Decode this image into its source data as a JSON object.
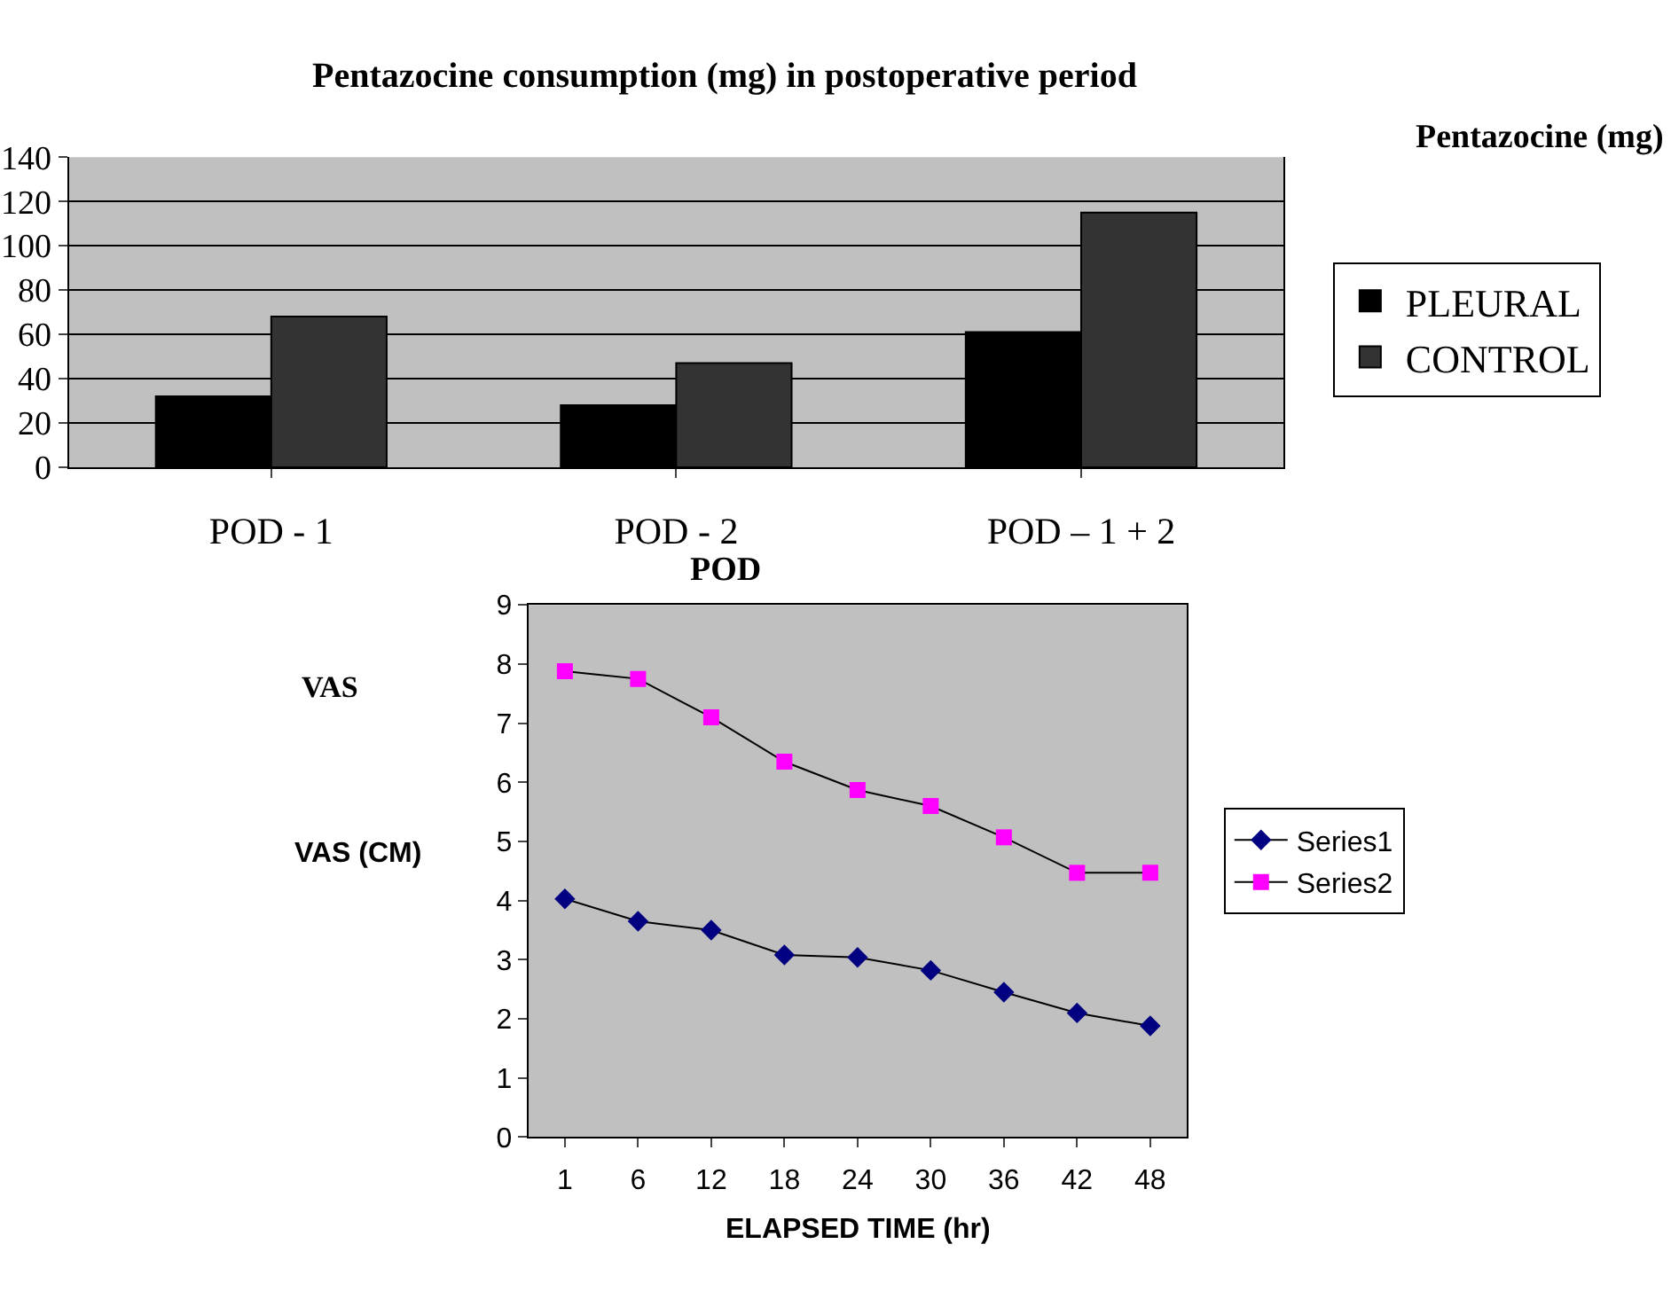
{
  "chart_data": [
    {
      "type": "bar",
      "title": "Pentazocine consumption (mg) in postoperative period",
      "ylabel": "Pentazocine (mg)",
      "xlabel": "POD",
      "categories": [
        "POD - 1",
        "POD - 2",
        "POD – 1 + 2"
      ],
      "series": [
        {
          "name": "PLEURAL",
          "color": "#000000",
          "values": [
            32,
            28,
            61
          ]
        },
        {
          "name": "CONTROL",
          "color": "#333333",
          "values": [
            68,
            47,
            115
          ]
        }
      ],
      "ylim": [
        0,
        140
      ],
      "yticks": [
        0,
        20,
        40,
        60,
        80,
        100,
        120,
        140
      ],
      "grid": "y",
      "legend": "right"
    },
    {
      "type": "line",
      "title": "VAS",
      "ylabel": "VAS (CM)",
      "xlabel": "ELAPSED TIME (hr)",
      "categories": [
        "1",
        "6",
        "12",
        "18",
        "24",
        "30",
        "36",
        "42",
        "48"
      ],
      "series": [
        {
          "name": "Series1",
          "color": "#000080",
          "marker": "diamond",
          "values": [
            4.03,
            3.65,
            3.5,
            3.08,
            3.04,
            2.82,
            2.45,
            2.1,
            1.88
          ]
        },
        {
          "name": "Series2",
          "color": "#ff00ff",
          "marker": "square",
          "values": [
            7.88,
            7.75,
            7.1,
            6.35,
            5.87,
            5.6,
            5.07,
            4.47,
            4.47
          ]
        }
      ],
      "ylim": [
        0,
        9
      ],
      "yticks": [
        0,
        1,
        2,
        3,
        4,
        5,
        6,
        7,
        8,
        9
      ],
      "grid": false,
      "legend": "right",
      "line_style": "solid"
    }
  ]
}
